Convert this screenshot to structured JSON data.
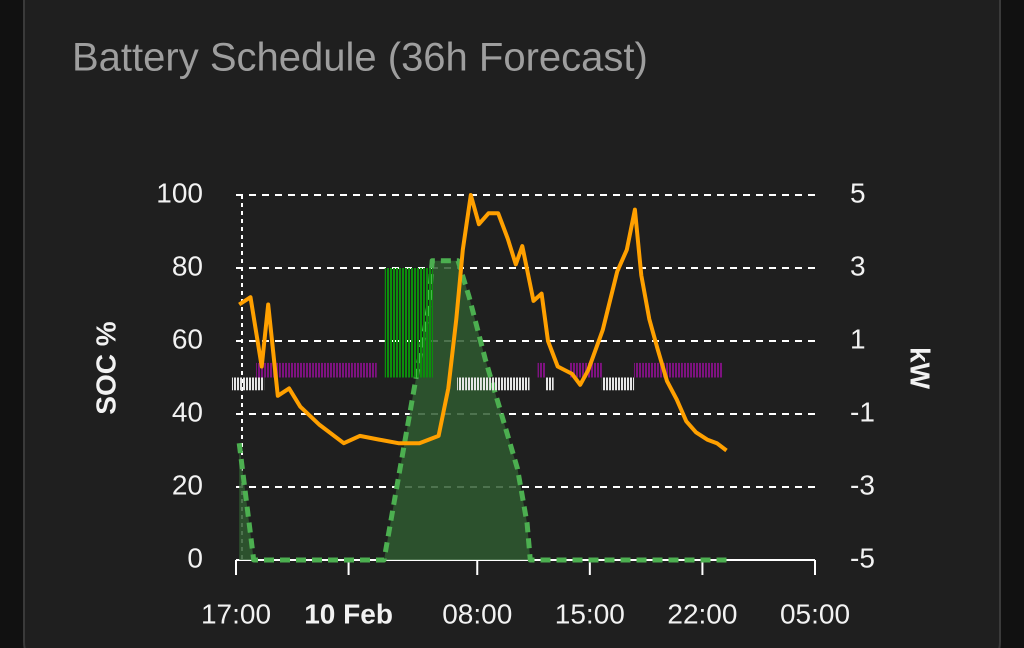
{
  "title": "Battery Schedule (36h Forecast)",
  "chart_data": {
    "type": "line",
    "ylabel": "SOC %",
    "y2label": "kW",
    "xlim": [
      17,
      53
    ],
    "xticks": [
      {
        "value": 17,
        "label": "17:00"
      },
      {
        "value": 24,
        "label": "10 Feb"
      },
      {
        "value": 32,
        "label": "08:00"
      },
      {
        "value": 39,
        "label": "15:00"
      },
      {
        "value": 46,
        "label": "22:00"
      },
      {
        "value": 53,
        "label": "05:00"
      }
    ],
    "ylim": [
      0,
      100
    ],
    "yticks": [
      0,
      20,
      40,
      60,
      80,
      100
    ],
    "y2lim": [
      -5,
      5
    ],
    "y2ticks": [
      -5,
      -3,
      -1,
      1,
      3,
      5
    ],
    "grid": true,
    "series": [
      {
        "type": "line",
        "fill": true,
        "dashed": true,
        "color": "#4caf50",
        "x": [
          17.2,
          18.1,
          26.2,
          27.0,
          28.0,
          29.0,
          29.2,
          30.8,
          31.5,
          32.5,
          33.5,
          34.5,
          35.1,
          35.3,
          47.5
        ],
        "values": [
          32,
          0,
          0,
          20,
          45,
          70,
          82,
          82,
          72,
          55,
          40,
          25,
          10,
          0,
          0
        ]
      },
      {
        "type": "bar",
        "axis": "y2",
        "color": "#0c8f0c",
        "x": [
          26.5,
          27.0,
          27.5,
          28.0,
          28.5,
          29.0
        ],
        "values": [
          3,
          3,
          3,
          3,
          3,
          3
        ]
      },
      {
        "type": "bar",
        "axis": "y2",
        "color": "#7e1280",
        "x": [
          18.5,
          19.0,
          19.5,
          20.0,
          20.5,
          21.0,
          21.5,
          22.0,
          22.5,
          23.0,
          23.5,
          24.0,
          24.5,
          25.0,
          25.5,
          36.0,
          38.0,
          38.5,
          39.0,
          39.5,
          42.0,
          42.5,
          43.0,
          43.5,
          44.0,
          44.5,
          45.0,
          45.5,
          46.0,
          46.5,
          47.0
        ],
        "values": [
          0.4,
          0.4,
          0.4,
          0.4,
          0.4,
          0.4,
          0.4,
          0.4,
          0.4,
          0.4,
          0.4,
          0.4,
          0.4,
          0.4,
          0.4,
          0.4,
          0.4,
          0.4,
          0.4,
          0.4,
          0.4,
          0.4,
          0.4,
          0.4,
          0.4,
          0.4,
          0.4,
          0.4,
          0.4,
          0.4,
          0.4
        ]
      },
      {
        "type": "bar",
        "axis": "y2",
        "color": "#e6e6e6",
        "x": [
          17.0,
          17.5,
          18.0,
          18.5,
          31.0,
          31.5,
          32.0,
          32.5,
          33.0,
          33.5,
          34.0,
          34.5,
          35.0,
          36.5,
          40.0,
          40.5,
          41.0,
          41.5
        ],
        "values": [
          -0.35,
          -0.35,
          -0.35,
          -0.35,
          -0.35,
          -0.35,
          -0.35,
          -0.35,
          -0.35,
          -0.35,
          -0.35,
          -0.35,
          -0.35,
          -0.35,
          -0.35,
          -0.35,
          -0.35,
          -0.35
        ]
      },
      {
        "type": "line",
        "axis": "y2",
        "color": "#ffa000",
        "x": [
          17.2,
          17.9,
          18.6,
          19.0,
          19.6,
          20.3,
          21.0,
          22.2,
          23.7,
          24.7,
          25.9,
          27.1,
          28.4,
          29.6,
          30.2,
          30.7,
          31.1,
          31.6,
          32.1,
          32.7,
          33.3,
          33.9,
          34.4,
          34.8,
          35.5,
          36.0,
          36.4,
          37.0,
          37.9,
          38.4,
          38.9,
          39.8,
          40.7,
          41.3,
          41.8,
          42.2,
          42.7,
          43.2,
          43.8,
          44.4,
          45.0,
          45.6,
          46.3,
          46.9,
          47.5
        ],
        "values": [
          2.0,
          2.2,
          0.3,
          2.0,
          -0.5,
          -0.3,
          -0.8,
          -1.3,
          -1.8,
          -1.6,
          -1.7,
          -1.8,
          -1.8,
          -1.6,
          -0.3,
          1.6,
          3.5,
          5.0,
          4.2,
          4.5,
          4.5,
          3.8,
          3.1,
          3.6,
          2.1,
          2.3,
          1.0,
          0.3,
          0.1,
          -0.2,
          0.2,
          1.3,
          2.9,
          3.5,
          4.6,
          2.8,
          1.6,
          0.8,
          -0.1,
          -0.6,
          -1.2,
          -1.5,
          -1.7,
          -1.8,
          -2.0
        ]
      }
    ]
  }
}
